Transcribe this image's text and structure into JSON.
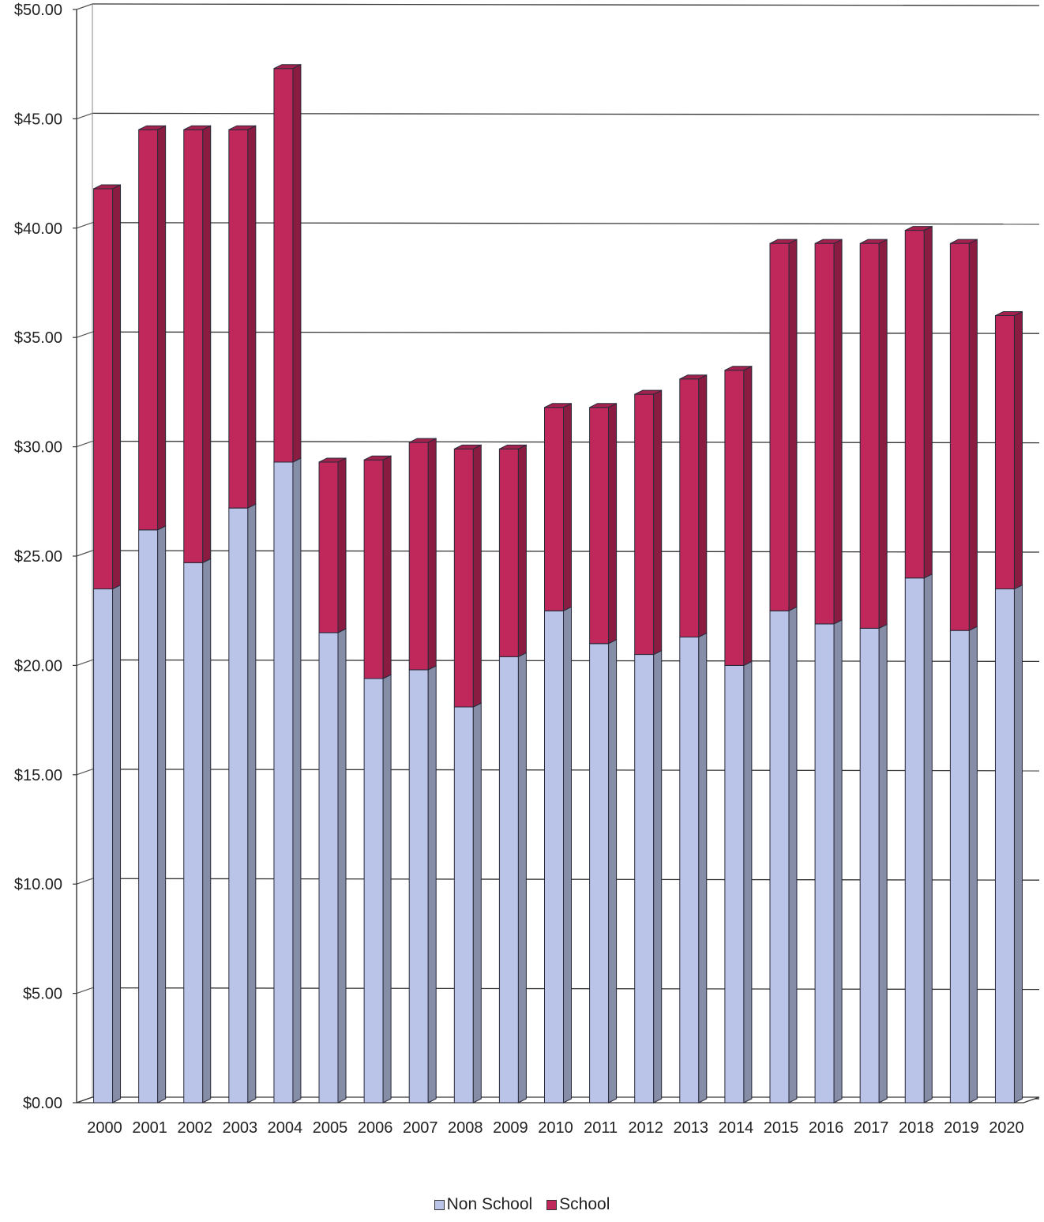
{
  "chart_data": {
    "type": "bar",
    "stacked": true,
    "three_d": true,
    "categories": [
      "2000",
      "2001",
      "2002",
      "2003",
      "2004",
      "2005",
      "2006",
      "2007",
      "2008",
      "2009",
      "2010",
      "2011",
      "2012",
      "2013",
      "2014",
      "2015",
      "2016",
      "2017",
      "2018",
      "2019",
      "2020"
    ],
    "series": [
      {
        "name": "Non School",
        "color": "#b9c4e8",
        "values": [
          23.5,
          26.2,
          24.7,
          27.2,
          29.3,
          21.5,
          19.4,
          19.8,
          18.1,
          20.4,
          22.5,
          21.0,
          20.5,
          21.3,
          20.0,
          22.5,
          21.9,
          21.7,
          24.0,
          21.6,
          23.5
        ]
      },
      {
        "name": "School",
        "color": "#c0275a",
        "values": [
          18.3,
          18.3,
          19.8,
          17.3,
          18.0,
          7.8,
          10.0,
          10.4,
          11.8,
          9.5,
          9.3,
          10.8,
          11.9,
          11.8,
          13.5,
          16.8,
          17.4,
          17.6,
          15.9,
          17.7,
          12.5
        ]
      }
    ],
    "ylim": [
      0,
      50
    ],
    "yticks": [
      "$0.00",
      "$5.00",
      "$10.00",
      "$15.00",
      "$20.00",
      "$25.00",
      "$30.00",
      "$35.00",
      "$40.00",
      "$45.00",
      "$50.00"
    ],
    "title": "",
    "xlabel": "",
    "ylabel": "",
    "grid": true,
    "legend_position": "bottom"
  },
  "legend": {
    "items": [
      {
        "label": "Non School",
        "color": "#b9c4e8"
      },
      {
        "label": "School",
        "color": "#c0275a"
      }
    ]
  }
}
